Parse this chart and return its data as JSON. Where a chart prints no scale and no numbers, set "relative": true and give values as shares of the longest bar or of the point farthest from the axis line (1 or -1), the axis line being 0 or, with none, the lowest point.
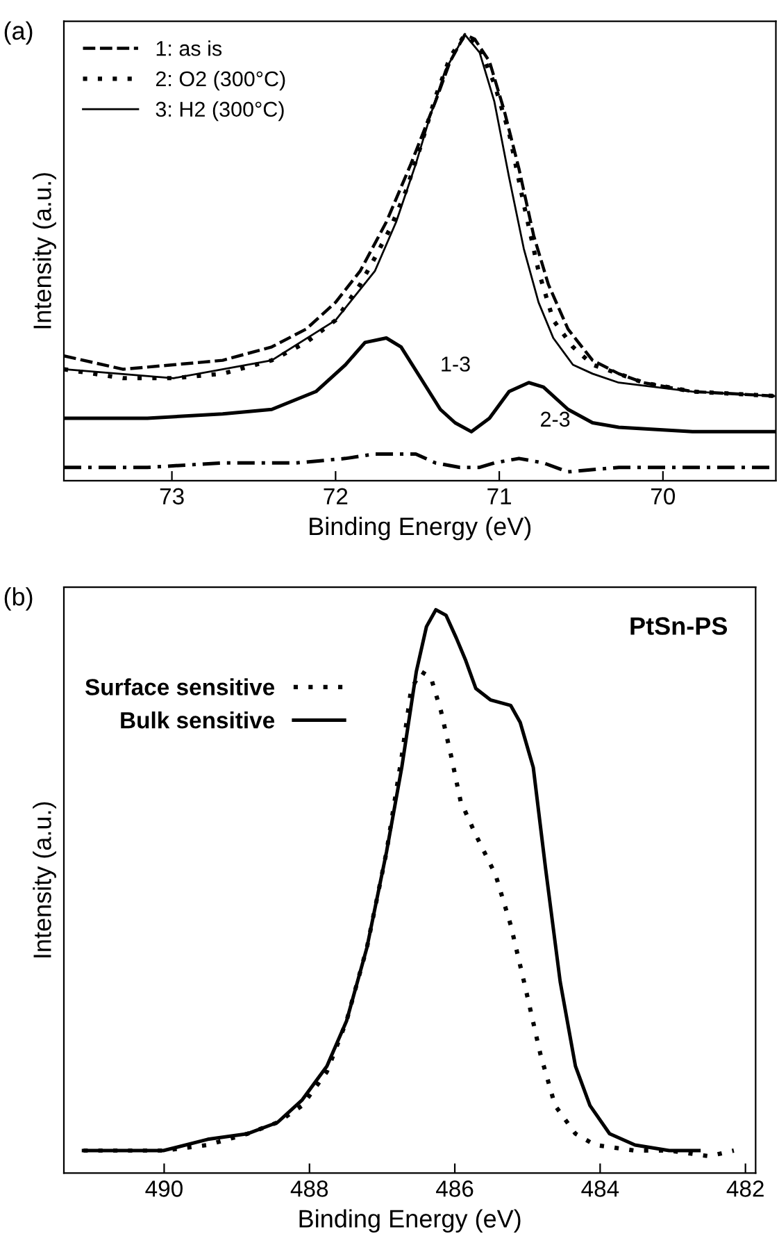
{
  "chart_data": [
    {
      "type": "line",
      "title": "(a)",
      "xlabel": "Binding Energy (eV)",
      "ylabel": "Intensity (a.u.)",
      "relative": true,
      "xlim": [
        73.66,
        69.31
      ],
      "xticks": [
        73,
        72,
        71,
        70
      ],
      "tick_labels": "x",
      "grid": false,
      "legend": "top left",
      "annotations": [
        "1-3",
        "2-3"
      ],
      "series": [
        {
          "name": "1: as is",
          "color": "#000000",
          "line_style": "dashed",
          "x": [
            73.66,
            73.3,
            72.99,
            72.69,
            72.39,
            72.18,
            72.0,
            71.85,
            71.69,
            71.54,
            71.39,
            71.3,
            71.21,
            71.15,
            71.06,
            70.97,
            70.88,
            70.79,
            70.7,
            70.58,
            70.43,
            70.27,
            70.12,
            69.82,
            69.32
          ],
          "values": [
            0.28,
            0.25,
            0.26,
            0.27,
            0.3,
            0.34,
            0.4,
            0.47,
            0.58,
            0.71,
            0.85,
            0.94,
            1.0,
            0.99,
            0.94,
            0.83,
            0.7,
            0.55,
            0.44,
            0.34,
            0.27,
            0.24,
            0.22,
            0.2,
            0.19
          ]
        },
        {
          "name": "2: O2 (300°C)",
          "color": "#000000",
          "line_style": "dotted",
          "x": [
            73.66,
            73.3,
            72.99,
            72.69,
            72.39,
            72.18,
            72.0,
            71.85,
            71.76,
            71.66,
            71.57,
            71.48,
            71.39,
            71.3,
            71.21,
            71.12,
            71.03,
            70.94,
            70.85,
            70.76,
            70.67,
            70.55,
            70.43,
            70.27,
            70.12,
            69.82,
            69.32
          ],
          "values": [
            0.25,
            0.23,
            0.23,
            0.24,
            0.27,
            0.31,
            0.36,
            0.44,
            0.5,
            0.57,
            0.65,
            0.75,
            0.86,
            0.95,
            1.0,
            0.97,
            0.89,
            0.78,
            0.62,
            0.47,
            0.36,
            0.3,
            0.26,
            0.24,
            0.22,
            0.2,
            0.19
          ]
        },
        {
          "name": "3: H2 (300°C)",
          "color": "#000000",
          "line_style": "solid",
          "x": [
            73.66,
            72.99,
            72.39,
            72.0,
            71.76,
            71.63,
            71.51,
            71.42,
            71.33,
            71.21,
            71.12,
            71.03,
            70.94,
            70.85,
            70.76,
            70.67,
            70.55,
            70.43,
            70.27,
            69.82,
            69.32
          ],
          "values": [
            0.25,
            0.23,
            0.27,
            0.36,
            0.47,
            0.58,
            0.71,
            0.82,
            0.92,
            1.0,
            0.96,
            0.85,
            0.68,
            0.52,
            0.4,
            0.32,
            0.26,
            0.24,
            0.22,
            0.2,
            0.19
          ]
        },
        {
          "color": "#000000",
          "line_style": "solid",
          "x": [
            73.66,
            73.15,
            72.69,
            72.39,
            72.12,
            71.94,
            71.82,
            71.69,
            71.6,
            71.48,
            71.36,
            71.27,
            71.17,
            71.06,
            70.94,
            70.82,
            70.73,
            70.58,
            70.43,
            70.27,
            69.82,
            69.32
          ],
          "values": [
            0.14,
            0.14,
            0.15,
            0.16,
            0.2,
            0.26,
            0.31,
            0.32,
            0.3,
            0.23,
            0.16,
            0.13,
            0.11,
            0.14,
            0.2,
            0.22,
            0.21,
            0.16,
            0.13,
            0.12,
            0.11,
            0.11
          ]
        },
        {
          "color": "#000000",
          "line_style": "dashdot",
          "x": [
            73.66,
            73.15,
            72.69,
            72.24,
            71.94,
            71.76,
            71.51,
            71.39,
            71.24,
            71.12,
            71.03,
            70.88,
            70.73,
            70.58,
            70.27,
            69.82,
            69.32
          ],
          "values": [
            0.03,
            0.03,
            0.04,
            0.04,
            0.05,
            0.06,
            0.06,
            0.04,
            0.03,
            0.03,
            0.04,
            0.05,
            0.04,
            0.02,
            0.03,
            0.03,
            0.03
          ]
        }
      ]
    },
    {
      "type": "line",
      "title": "(b)",
      "xlabel": "Binding Energy (eV)",
      "ylabel": "Intensity (a.u.)",
      "relative": true,
      "xlim": [
        491.38,
        481.86
      ],
      "xticks": [
        490,
        488,
        486,
        484,
        482
      ],
      "tick_labels": "x",
      "grid": false,
      "legend": "top left",
      "annotations": [
        "PtSn-PS"
      ],
      "series": [
        {
          "name": "Surface sensitive",
          "color": "#000000",
          "line_style": "dotted",
          "x": [
            491.11,
            490.56,
            490.01,
            489.4,
            488.85,
            488.44,
            488.1,
            487.76,
            487.49,
            487.21,
            486.94,
            486.73,
            486.6,
            486.46,
            486.33,
            486.19,
            486.05,
            485.92,
            485.71,
            485.44,
            485.23,
            485.03,
            484.82,
            484.62,
            484.34,
            484.07,
            483.52,
            483.05,
            482.5,
            482.16
          ],
          "values": [
            0.04,
            0.04,
            0.04,
            0.05,
            0.07,
            0.09,
            0.12,
            0.18,
            0.27,
            0.4,
            0.57,
            0.74,
            0.86,
            0.89,
            0.88,
            0.82,
            0.74,
            0.66,
            0.6,
            0.53,
            0.44,
            0.33,
            0.21,
            0.12,
            0.07,
            0.05,
            0.04,
            0.04,
            0.03,
            0.04
          ]
        },
        {
          "name": "Bulk sensitive",
          "color": "#000000",
          "line_style": "solid",
          "x": [
            491.11,
            490.56,
            490.01,
            489.4,
            488.85,
            488.44,
            488.1,
            487.76,
            487.49,
            487.21,
            486.94,
            486.73,
            486.53,
            486.39,
            486.26,
            486.12,
            485.98,
            485.85,
            485.71,
            485.51,
            485.23,
            485.1,
            484.92,
            484.75,
            484.55,
            484.34,
            484.14,
            483.87,
            483.52,
            483.05,
            482.64
          ],
          "values": [
            0.04,
            0.04,
            0.04,
            0.06,
            0.07,
            0.09,
            0.13,
            0.19,
            0.27,
            0.4,
            0.57,
            0.72,
            0.89,
            0.97,
            1.0,
            0.99,
            0.95,
            0.91,
            0.86,
            0.84,
            0.83,
            0.8,
            0.72,
            0.54,
            0.34,
            0.19,
            0.12,
            0.07,
            0.05,
            0.04,
            0.04
          ]
        }
      ]
    }
  ]
}
